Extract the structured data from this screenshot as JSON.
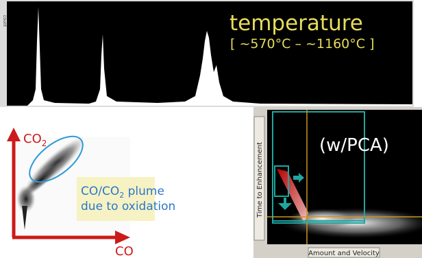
{
  "histogram": {
    "axis_label": "count",
    "title": "temperature",
    "range": "[ ~570°C – ~1160°C ]"
  },
  "scatter": {
    "y_label": {
      "main": "CO",
      "sub": "2"
    },
    "x_label": "CO",
    "note": {
      "line1_a": "CO/CO",
      "line1_sub": "2",
      "line1_b": " plume",
      "line2": "due to oxidation"
    }
  },
  "pca_view": {
    "title": "(w/PCA)",
    "y_label": "Time to Enhancement",
    "x_label": "Amount and Velocity"
  }
}
